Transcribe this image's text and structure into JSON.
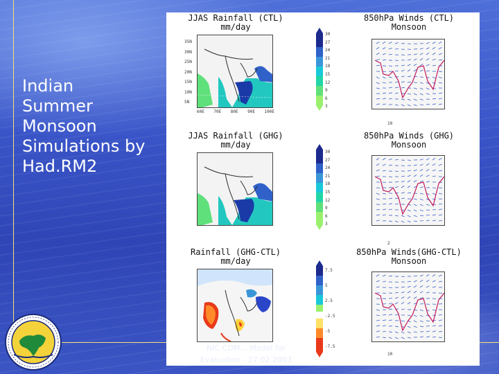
{
  "slide": {
    "title_lines": [
      "Indian",
      "Summer",
      "Monsoon",
      "Simulations by",
      "Had.RM2"
    ]
  },
  "panels": {
    "rain_ctl": {
      "line1": "JJAS Rainfall (CTL)",
      "line2": "mm/day"
    },
    "wind_ctl": {
      "line1": "850hPa Winds (CTL)",
      "line2": "Monsoon"
    },
    "rain_ghg": {
      "line1": "JJAS Rainfall (GHG)",
      "line2": "mm/day"
    },
    "wind_ghg": {
      "line1": "850hPa Winds (GHG)",
      "line2": "Monsoon"
    },
    "rain_diff": {
      "line1": "Rainfall (GHG-CTL)",
      "line2": "mm/day"
    },
    "wind_diff": {
      "line1": "850hPa Winds(GHG-CTL)",
      "line2": "Monsoon"
    }
  },
  "rain_colorbar_ticks": [
    "30",
    "27",
    "24",
    "21",
    "18",
    "15",
    "12",
    "9",
    "6",
    "3"
  ],
  "diff_colorbar_ticks": [
    "7.5",
    "5",
    "2.5",
    "-2.5",
    "-5",
    "-7.5"
  ],
  "lat_ticks": [
    "35N",
    "30N",
    "25N",
    "20N",
    "15N",
    "10N",
    "5N"
  ],
  "lon_ticks": [
    "60E",
    "70E",
    "80E",
    "90E",
    "100E"
  ],
  "wind_scale_labels": [
    "10",
    "10",
    "2"
  ],
  "footer": {
    "line1": "NIC CDM... Model for",
    "line2": "Evaluation - 27.02.2003"
  },
  "colors": {
    "rain_low": "#7cf07c",
    "rain_mid": "#19c9d8",
    "rain_high": "#2233aa",
    "diff_pos": "#2b45c8",
    "diff_neg": "#e83a1a",
    "monsoon_contour": "#c2185b",
    "wind_vectors": "#3a5ec4"
  }
}
